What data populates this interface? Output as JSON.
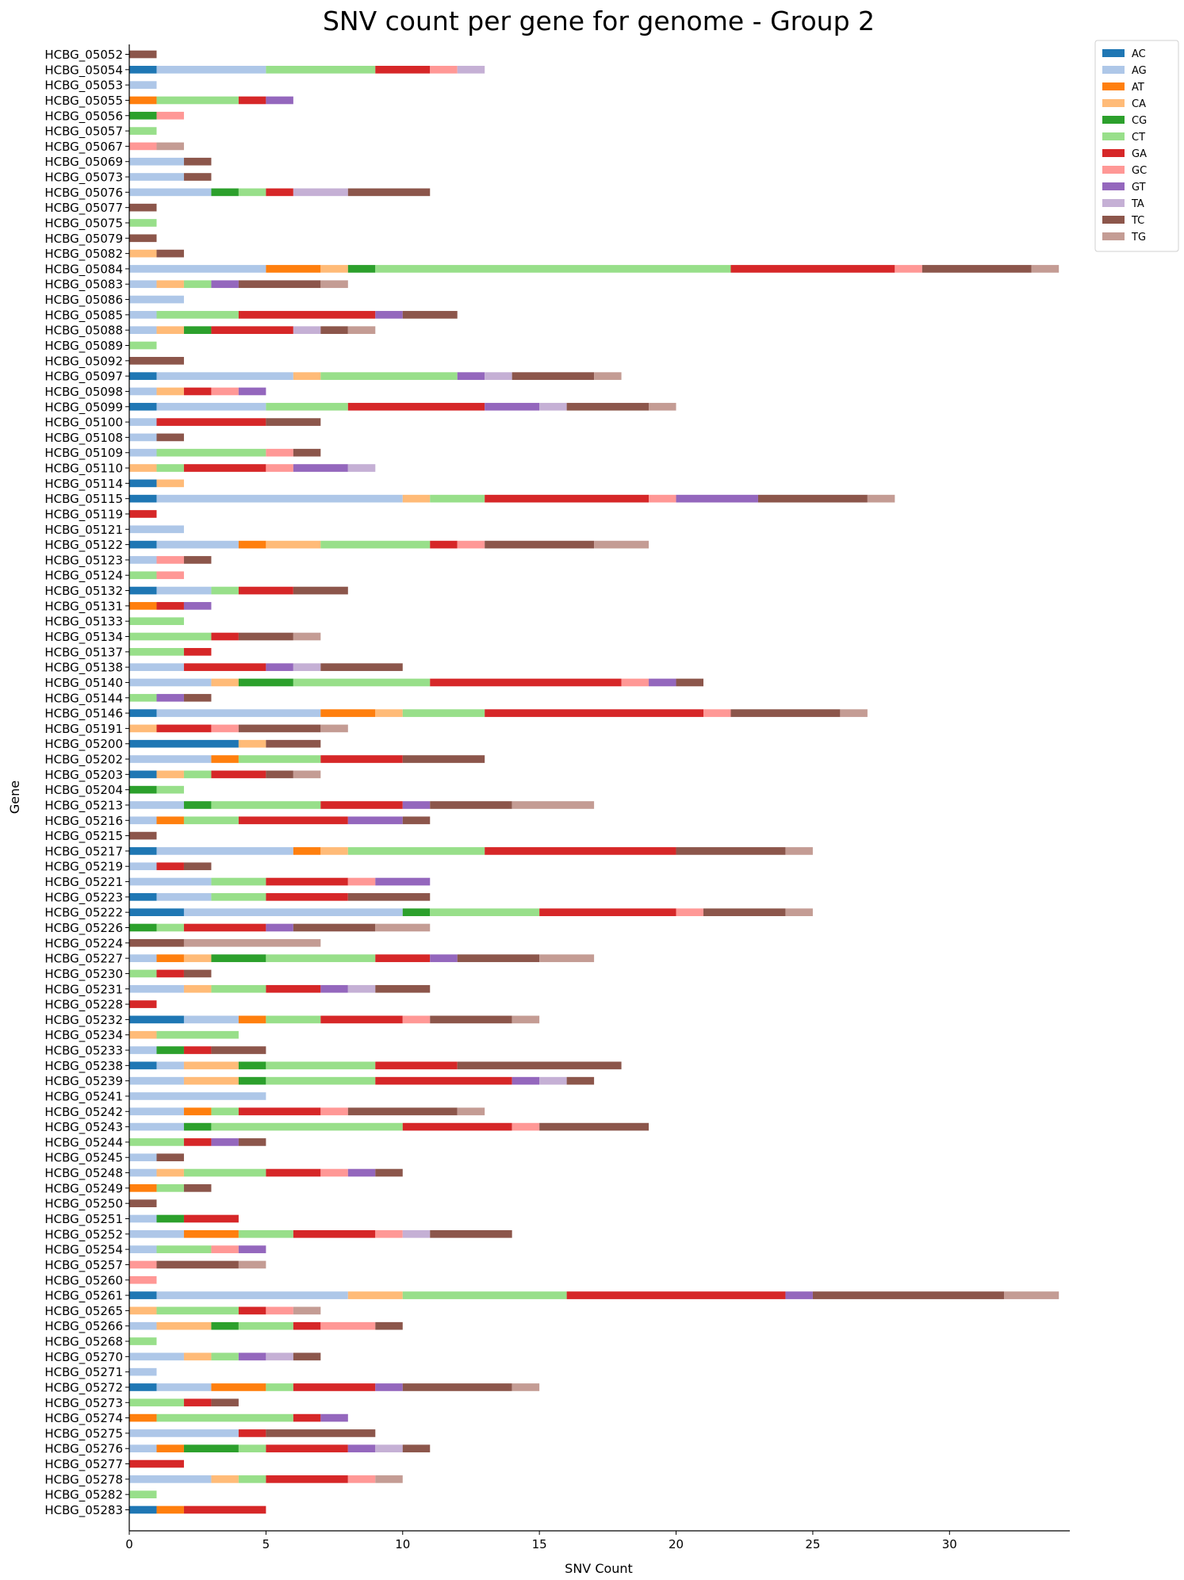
{
  "chart_data": {
    "type": "bar",
    "orientation": "horizontal",
    "stacked": true,
    "title": "SNV count per gene for genome - Group 2",
    "xlabel": "SNV Count",
    "ylabel": "Gene",
    "xlim": [
      0,
      34.4
    ],
    "xticks": [
      0,
      5,
      10,
      15,
      20,
      25,
      30
    ],
    "grid": false,
    "legend_position": "top-right, outside plot",
    "series_keys": [
      "AC",
      "AG",
      "AT",
      "CA",
      "CG",
      "CT",
      "GA",
      "GC",
      "GT",
      "TA",
      "TC",
      "TG"
    ],
    "series": [
      {
        "name": "AC",
        "color": "#1f77b4"
      },
      {
        "name": "AG",
        "color": "#aec7e8"
      },
      {
        "name": "AT",
        "color": "#ff7f0e"
      },
      {
        "name": "CA",
        "color": "#ffbb78"
      },
      {
        "name": "CG",
        "color": "#2ca02c"
      },
      {
        "name": "CT",
        "color": "#98df8a"
      },
      {
        "name": "GA",
        "color": "#d62728"
      },
      {
        "name": "GC",
        "color": "#ff9896"
      },
      {
        "name": "GT",
        "color": "#9467bd"
      },
      {
        "name": "TA",
        "color": "#c5b0d5"
      },
      {
        "name": "TC",
        "color": "#8c564b"
      },
      {
        "name": "TG",
        "color": "#c49c94"
      }
    ],
    "categories": [
      {
        "gene": "HCBG_05052",
        "counts": {
          "TC": 1
        }
      },
      {
        "gene": "HCBG_05054",
        "counts": {
          "AC": 1,
          "AG": 4,
          "CT": 4,
          "GA": 2,
          "GC": 1,
          "TA": 1
        }
      },
      {
        "gene": "HCBG_05053",
        "counts": {
          "AG": 1
        }
      },
      {
        "gene": "HCBG_05055",
        "counts": {
          "AT": 1,
          "CT": 3,
          "GA": 1,
          "GT": 1
        }
      },
      {
        "gene": "HCBG_05056",
        "counts": {
          "CG": 1,
          "GC": 1
        }
      },
      {
        "gene": "HCBG_05057",
        "counts": {
          "CT": 1
        }
      },
      {
        "gene": "HCBG_05067",
        "counts": {
          "GC": 1,
          "TG": 1
        }
      },
      {
        "gene": "HCBG_05069",
        "counts": {
          "AG": 2,
          "TC": 1
        }
      },
      {
        "gene": "HCBG_05073",
        "counts": {
          "AG": 2,
          "TC": 1
        }
      },
      {
        "gene": "HCBG_05076",
        "counts": {
          "AG": 3,
          "CG": 1,
          "CT": 1,
          "GA": 1,
          "TA": 2,
          "TC": 3
        }
      },
      {
        "gene": "HCBG_05077",
        "counts": {
          "TC": 1
        }
      },
      {
        "gene": "HCBG_05075",
        "counts": {
          "CT": 1
        }
      },
      {
        "gene": "HCBG_05079",
        "counts": {
          "TC": 1
        }
      },
      {
        "gene": "HCBG_05082",
        "counts": {
          "CA": 1,
          "TC": 1
        }
      },
      {
        "gene": "HCBG_05084",
        "counts": {
          "AG": 5,
          "AT": 2,
          "CA": 1,
          "CG": 1,
          "CT": 13,
          "GA": 6,
          "GC": 1,
          "TC": 4,
          "TG": 1
        }
      },
      {
        "gene": "HCBG_05083",
        "counts": {
          "AG": 1,
          "CA": 1,
          "CT": 1,
          "GT": 1,
          "TC": 3,
          "TG": 1
        }
      },
      {
        "gene": "HCBG_05086",
        "counts": {
          "AG": 2
        }
      },
      {
        "gene": "HCBG_05085",
        "counts": {
          "AG": 1,
          "CT": 3,
          "GA": 5,
          "GT": 1,
          "TC": 2
        }
      },
      {
        "gene": "HCBG_05088",
        "counts": {
          "AG": 1,
          "CA": 1,
          "CG": 1,
          "GA": 3,
          "TA": 1,
          "TC": 1,
          "TG": 1
        }
      },
      {
        "gene": "HCBG_05089",
        "counts": {
          "CT": 1
        }
      },
      {
        "gene": "HCBG_05092",
        "counts": {
          "TC": 2
        }
      },
      {
        "gene": "HCBG_05097",
        "counts": {
          "AC": 1,
          "AG": 5,
          "CA": 1,
          "CT": 5,
          "GT": 1,
          "TA": 1,
          "TC": 3,
          "TG": 1
        }
      },
      {
        "gene": "HCBG_05098",
        "counts": {
          "AG": 1,
          "CA": 1,
          "GA": 1,
          "GC": 1,
          "GT": 1
        }
      },
      {
        "gene": "HCBG_05099",
        "counts": {
          "AC": 1,
          "AG": 4,
          "CT": 3,
          "GA": 5,
          "GT": 2,
          "TA": 1,
          "TC": 3,
          "TG": 1
        }
      },
      {
        "gene": "HCBG_05100",
        "counts": {
          "AG": 1,
          "GA": 4,
          "TC": 2
        }
      },
      {
        "gene": "HCBG_05108",
        "counts": {
          "AG": 1,
          "TC": 1
        }
      },
      {
        "gene": "HCBG_05109",
        "counts": {
          "AG": 1,
          "CT": 4,
          "GC": 1,
          "TC": 1
        }
      },
      {
        "gene": "HCBG_05110",
        "counts": {
          "CA": 1,
          "CT": 1,
          "GA": 3,
          "GC": 1,
          "GT": 2,
          "TA": 1
        }
      },
      {
        "gene": "HCBG_05114",
        "counts": {
          "AC": 1,
          "CA": 1
        }
      },
      {
        "gene": "HCBG_05115",
        "counts": {
          "AC": 1,
          "AG": 9,
          "CA": 1,
          "CT": 2,
          "GA": 6,
          "GC": 1,
          "GT": 3,
          "TC": 4,
          "TG": 1
        }
      },
      {
        "gene": "HCBG_05119",
        "counts": {
          "GA": 1
        }
      },
      {
        "gene": "HCBG_05121",
        "counts": {
          "AG": 2
        }
      },
      {
        "gene": "HCBG_05122",
        "counts": {
          "AC": 1,
          "AG": 3,
          "AT": 1,
          "CA": 2,
          "CT": 4,
          "GA": 1,
          "GC": 1,
          "TC": 4,
          "TG": 2
        }
      },
      {
        "gene": "HCBG_05123",
        "counts": {
          "AG": 1,
          "GC": 1,
          "TC": 1
        }
      },
      {
        "gene": "HCBG_05124",
        "counts": {
          "CT": 1,
          "GC": 1
        }
      },
      {
        "gene": "HCBG_05132",
        "counts": {
          "AC": 1,
          "AG": 2,
          "CT": 1,
          "GA": 2,
          "TC": 2
        }
      },
      {
        "gene": "HCBG_05131",
        "counts": {
          "AT": 1,
          "GA": 1,
          "GT": 1
        }
      },
      {
        "gene": "HCBG_05133",
        "counts": {
          "CT": 2
        }
      },
      {
        "gene": "HCBG_05134",
        "counts": {
          "CT": 3,
          "GA": 1,
          "TC": 2,
          "TG": 1
        }
      },
      {
        "gene": "HCBG_05137",
        "counts": {
          "CT": 2,
          "GA": 1
        }
      },
      {
        "gene": "HCBG_05138",
        "counts": {
          "AG": 2,
          "GA": 3,
          "GT": 1,
          "TA": 1,
          "TC": 3
        }
      },
      {
        "gene": "HCBG_05140",
        "counts": {
          "AG": 3,
          "CA": 1,
          "CG": 2,
          "CT": 5,
          "GA": 7,
          "GC": 1,
          "GT": 1,
          "TC": 1
        }
      },
      {
        "gene": "HCBG_05144",
        "counts": {
          "CT": 1,
          "GT": 1,
          "TC": 1
        }
      },
      {
        "gene": "HCBG_05146",
        "counts": {
          "AC": 1,
          "AG": 6,
          "AT": 2,
          "CA": 1,
          "CT": 3,
          "GA": 8,
          "GC": 1,
          "TC": 4,
          "TG": 1
        }
      },
      {
        "gene": "HCBG_05191",
        "counts": {
          "CA": 1,
          "GA": 2,
          "GC": 1,
          "TC": 3,
          "TG": 1
        }
      },
      {
        "gene": "HCBG_05200",
        "counts": {
          "AC": 4,
          "CA": 1,
          "TC": 2
        }
      },
      {
        "gene": "HCBG_05202",
        "counts": {
          "AG": 3,
          "AT": 1,
          "CT": 3,
          "GA": 3,
          "TC": 3
        }
      },
      {
        "gene": "HCBG_05203",
        "counts": {
          "AC": 1,
          "CA": 1,
          "CT": 1,
          "GA": 2,
          "TC": 1,
          "TG": 1
        }
      },
      {
        "gene": "HCBG_05204",
        "counts": {
          "CG": 1,
          "CT": 1
        }
      },
      {
        "gene": "HCBG_05213",
        "counts": {
          "AG": 2,
          "CG": 1,
          "CT": 4,
          "GA": 3,
          "GT": 1,
          "TC": 3,
          "TG": 3
        }
      },
      {
        "gene": "HCBG_05216",
        "counts": {
          "AG": 1,
          "AT": 1,
          "CT": 2,
          "GA": 4,
          "GT": 2,
          "TC": 1
        }
      },
      {
        "gene": "HCBG_05215",
        "counts": {
          "TC": 1
        }
      },
      {
        "gene": "HCBG_05217",
        "counts": {
          "AC": 1,
          "AG": 5,
          "AT": 1,
          "CA": 1,
          "CT": 5,
          "GA": 7,
          "TC": 4,
          "TG": 1
        }
      },
      {
        "gene": "HCBG_05219",
        "counts": {
          "AG": 1,
          "GA": 1,
          "TC": 1
        }
      },
      {
        "gene": "HCBG_05221",
        "counts": {
          "AG": 3,
          "CT": 2,
          "GA": 3,
          "GC": 1,
          "GT": 2
        }
      },
      {
        "gene": "HCBG_05223",
        "counts": {
          "AC": 1,
          "AG": 2,
          "CT": 2,
          "GA": 3,
          "TC": 3
        }
      },
      {
        "gene": "HCBG_05222",
        "counts": {
          "AC": 2,
          "AG": 8,
          "CG": 1,
          "CT": 4,
          "GA": 5,
          "GC": 1,
          "TC": 3,
          "TG": 1
        }
      },
      {
        "gene": "HCBG_05226",
        "counts": {
          "CG": 1,
          "CT": 1,
          "GA": 3,
          "GT": 1,
          "TC": 3,
          "TG": 2
        }
      },
      {
        "gene": "HCBG_05224",
        "counts": {
          "TC": 2,
          "TG": 5
        }
      },
      {
        "gene": "HCBG_05227",
        "counts": {
          "AG": 1,
          "AT": 1,
          "CA": 1,
          "CG": 2,
          "CT": 4,
          "GA": 2,
          "GT": 1,
          "TC": 3,
          "TG": 2
        }
      },
      {
        "gene": "HCBG_05230",
        "counts": {
          "CT": 1,
          "GA": 1,
          "TC": 1
        }
      },
      {
        "gene": "HCBG_05231",
        "counts": {
          "AG": 2,
          "CA": 1,
          "CT": 2,
          "GA": 2,
          "GT": 1,
          "TA": 1,
          "TC": 2
        }
      },
      {
        "gene": "HCBG_05228",
        "counts": {
          "GA": 1
        }
      },
      {
        "gene": "HCBG_05232",
        "counts": {
          "AC": 2,
          "AG": 2,
          "AT": 1,
          "CT": 2,
          "GA": 3,
          "GC": 1,
          "TC": 3,
          "TG": 1
        }
      },
      {
        "gene": "HCBG_05234",
        "counts": {
          "CA": 1,
          "CT": 3
        }
      },
      {
        "gene": "HCBG_05233",
        "counts": {
          "AG": 1,
          "CG": 1,
          "GA": 1,
          "TC": 2
        }
      },
      {
        "gene": "HCBG_05238",
        "counts": {
          "AC": 1,
          "AG": 1,
          "CA": 2,
          "CG": 1,
          "CT": 4,
          "GA": 3,
          "TC": 6
        }
      },
      {
        "gene": "HCBG_05239",
        "counts": {
          "AG": 2,
          "CA": 2,
          "CG": 1,
          "CT": 4,
          "GA": 5,
          "GT": 1,
          "TA": 1,
          "TC": 1
        }
      },
      {
        "gene": "HCBG_05241",
        "counts": {
          "AG": 5
        }
      },
      {
        "gene": "HCBG_05242",
        "counts": {
          "AG": 2,
          "AT": 1,
          "CT": 1,
          "GA": 3,
          "GC": 1,
          "TC": 4,
          "TG": 1
        }
      },
      {
        "gene": "HCBG_05243",
        "counts": {
          "AG": 2,
          "CG": 1,
          "CT": 7,
          "GA": 4,
          "GC": 1,
          "TC": 4
        }
      },
      {
        "gene": "HCBG_05244",
        "counts": {
          "CT": 2,
          "GA": 1,
          "GT": 1,
          "TC": 1
        }
      },
      {
        "gene": "HCBG_05245",
        "counts": {
          "AG": 1,
          "TC": 1
        }
      },
      {
        "gene": "HCBG_05248",
        "counts": {
          "AG": 1,
          "CA": 1,
          "CT": 3,
          "GA": 2,
          "GC": 1,
          "GT": 1,
          "TC": 1
        }
      },
      {
        "gene": "HCBG_05249",
        "counts": {
          "AT": 1,
          "CT": 1,
          "TC": 1
        }
      },
      {
        "gene": "HCBG_05250",
        "counts": {
          "TC": 1
        }
      },
      {
        "gene": "HCBG_05251",
        "counts": {
          "AG": 1,
          "CG": 1,
          "GA": 2
        }
      },
      {
        "gene": "HCBG_05252",
        "counts": {
          "AG": 2,
          "AT": 2,
          "CT": 2,
          "GA": 3,
          "GC": 1,
          "TA": 1,
          "TC": 3
        }
      },
      {
        "gene": "HCBG_05254",
        "counts": {
          "AG": 1,
          "CT": 2,
          "GC": 1,
          "GT": 1
        }
      },
      {
        "gene": "HCBG_05257",
        "counts": {
          "GC": 1,
          "TC": 3,
          "TG": 1
        }
      },
      {
        "gene": "HCBG_05260",
        "counts": {
          "GC": 1
        }
      },
      {
        "gene": "HCBG_05261",
        "counts": {
          "AC": 1,
          "AG": 7,
          "CA": 2,
          "CT": 6,
          "GA": 8,
          "GT": 1,
          "TC": 7,
          "TG": 2
        }
      },
      {
        "gene": "HCBG_05265",
        "counts": {
          "CA": 1,
          "CT": 3,
          "GA": 1,
          "GC": 1,
          "TG": 1
        }
      },
      {
        "gene": "HCBG_05266",
        "counts": {
          "AG": 1,
          "CA": 2,
          "CG": 1,
          "CT": 2,
          "GA": 1,
          "GC": 2,
          "TC": 1
        }
      },
      {
        "gene": "HCBG_05268",
        "counts": {
          "CT": 1
        }
      },
      {
        "gene": "HCBG_05270",
        "counts": {
          "AG": 2,
          "CA": 1,
          "CT": 1,
          "GT": 1,
          "TA": 1,
          "TC": 1
        }
      },
      {
        "gene": "HCBG_05271",
        "counts": {
          "AG": 1
        }
      },
      {
        "gene": "HCBG_05272",
        "counts": {
          "AC": 1,
          "AG": 2,
          "AT": 2,
          "CT": 1,
          "GA": 3,
          "GT": 1,
          "TC": 4,
          "TG": 1
        }
      },
      {
        "gene": "HCBG_05273",
        "counts": {
          "CT": 2,
          "GA": 1,
          "TC": 1
        }
      },
      {
        "gene": "HCBG_05274",
        "counts": {
          "AT": 1,
          "CT": 5,
          "GA": 1,
          "GT": 1
        }
      },
      {
        "gene": "HCBG_05275",
        "counts": {
          "AG": 4,
          "GA": 1,
          "TC": 4
        }
      },
      {
        "gene": "HCBG_05276",
        "counts": {
          "AG": 1,
          "AT": 1,
          "CG": 2,
          "CT": 1,
          "GA": 3,
          "GT": 1,
          "TA": 1,
          "TC": 1
        }
      },
      {
        "gene": "HCBG_05277",
        "counts": {
          "GA": 2
        }
      },
      {
        "gene": "HCBG_05278",
        "counts": {
          "AG": 3,
          "CA": 1,
          "CT": 1,
          "GA": 3,
          "GC": 1,
          "TG": 1
        }
      },
      {
        "gene": "HCBG_05282",
        "counts": {
          "CT": 1
        }
      },
      {
        "gene": "HCBG_05283",
        "counts": {
          "AC": 1,
          "AT": 1,
          "GA": 3
        }
      }
    ]
  }
}
